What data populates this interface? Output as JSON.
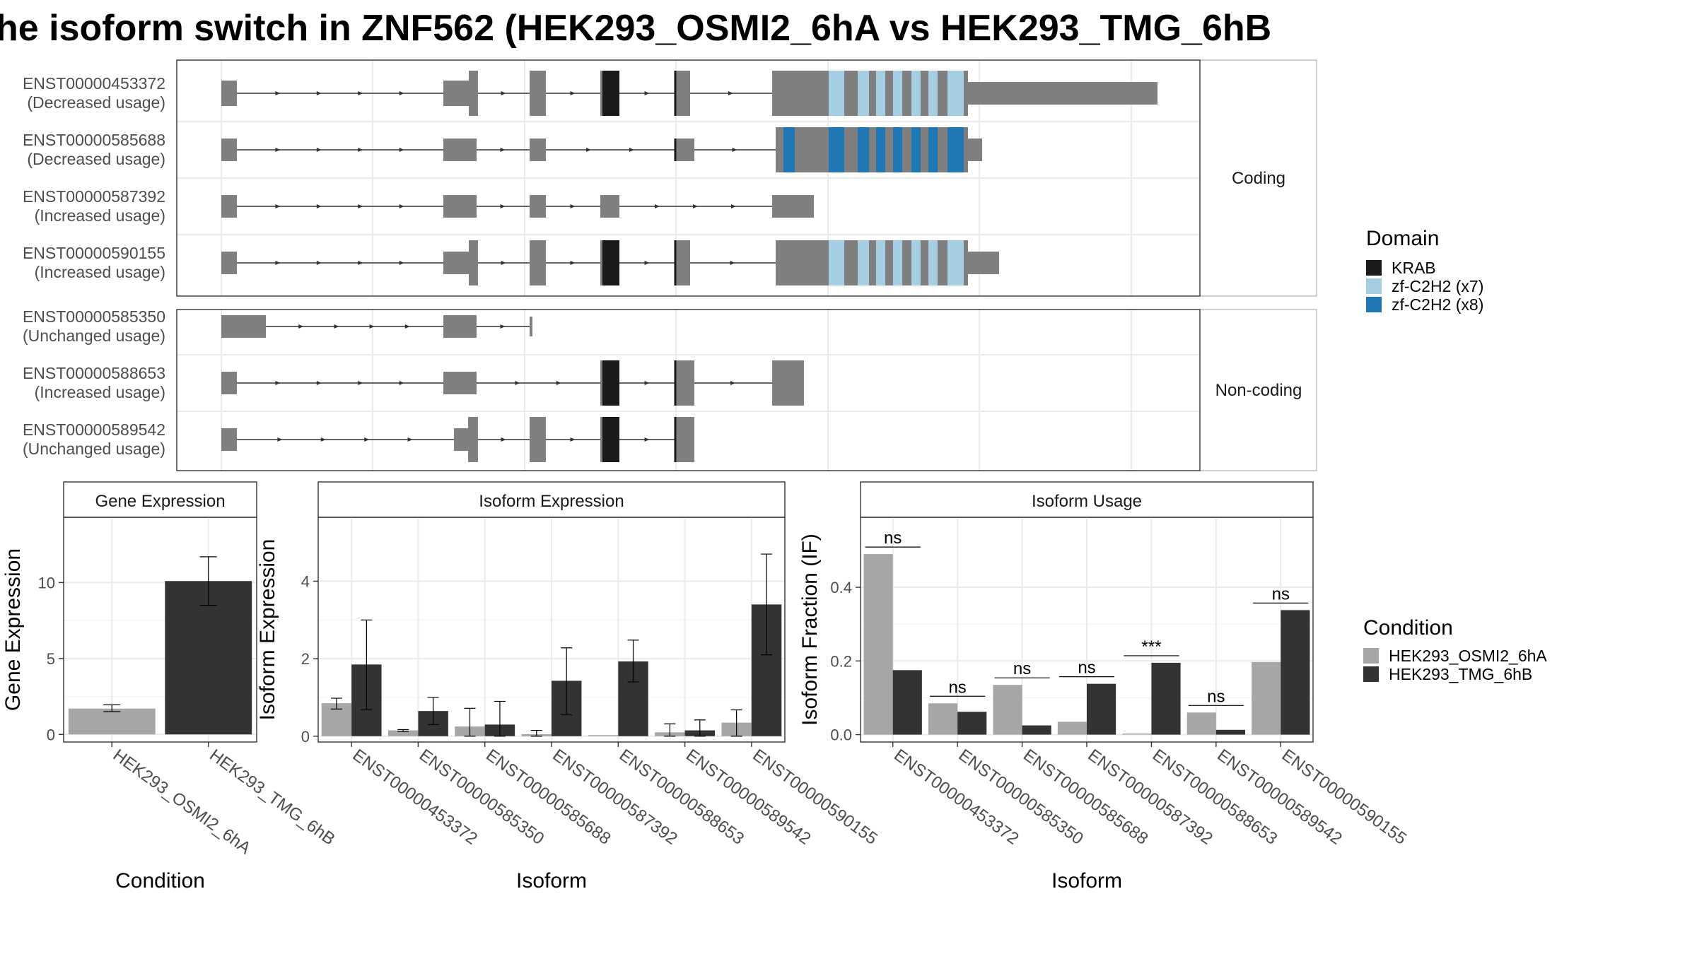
{
  "title": "he isoform switch in ZNF562 (HEK293_OSMI2_6hA vs HEK293_TMG_6hB",
  "colors": {
    "krab": "#1a1a1a",
    "zf7": "#a6cee3",
    "zf8": "#1f78b4",
    "exon": "#7f7f7f",
    "cond1": "#a6a6a6",
    "cond2": "#333333",
    "strip_bg": "#ffffff",
    "grid": "#ebebeb"
  },
  "structure": {
    "groups": [
      {
        "label": "Coding",
        "transcripts": [
          {
            "id": "ENST00000453372",
            "usage": "(Decreased usage)"
          },
          {
            "id": "ENST00000585688",
            "usage": "(Decreased usage)"
          },
          {
            "id": "ENST00000587392",
            "usage": "(Increased usage)"
          },
          {
            "id": "ENST00000590155",
            "usage": "(Increased usage)"
          }
        ]
      },
      {
        "label": "Non-coding",
        "transcripts": [
          {
            "id": "ENST00000585350",
            "usage": "(Unchanged usage)"
          },
          {
            "id": "ENST00000588653",
            "usage": "(Increased usage)"
          },
          {
            "id": "ENST00000589542",
            "usage": "(Unchanged usage)"
          }
        ]
      }
    ],
    "domain_legend": {
      "title": "Domain",
      "items": [
        {
          "name": "KRAB",
          "color": "#1a1a1a"
        },
        {
          "name": "zf-C2H2 (x7)",
          "color": "#a6cee3"
        },
        {
          "name": "zf-C2H2 (x8)",
          "color": "#1f78b4"
        }
      ]
    }
  },
  "chart_data": [
    {
      "type": "bar",
      "title": "Gene Expression",
      "xlabel": "Condition",
      "ylabel": "Gene Expression",
      "categories": [
        "HEK293_OSMI2_6hA",
        "HEK293_TMG_6hB"
      ],
      "values": [
        1.7,
        10.1
      ],
      "errors": [
        [
          1.5,
          1.95
        ],
        [
          8.5,
          11.7
        ]
      ],
      "ylim": [
        -0.5,
        14.3
      ],
      "yticks": [
        0,
        5,
        10
      ]
    },
    {
      "type": "bar",
      "title": "Isoform Expression",
      "xlabel": "Isoform",
      "ylabel": "Isoform Expression",
      "categories": [
        "ENST00000453372",
        "ENST00000585350",
        "ENST00000585688",
        "ENST00000587392",
        "ENST00000588653",
        "ENST00000589542",
        "ENST00000590155"
      ],
      "series": [
        {
          "name": "HEK293_OSMI2_6hA",
          "values": [
            0.85,
            0.15,
            0.25,
            0.05,
            0.0,
            0.1,
            0.35
          ],
          "errors": [
            [
              0.7,
              0.98
            ],
            [
              0.12,
              0.17
            ],
            [
              0.0,
              0.72
            ],
            [
              0.0,
              0.15
            ],
            [
              0.0,
              0.0
            ],
            [
              0.0,
              0.32
            ],
            [
              0.0,
              0.68
            ]
          ]
        },
        {
          "name": "HEK293_TMG_6hB",
          "values": [
            1.85,
            0.65,
            0.3,
            1.43,
            1.93,
            0.15,
            3.4
          ],
          "errors": [
            [
              0.68,
              3.0
            ],
            [
              0.3,
              1.0
            ],
            [
              0.0,
              0.9
            ],
            [
              0.55,
              2.28
            ],
            [
              1.4,
              2.48
            ],
            [
              0.0,
              0.42
            ],
            [
              2.1,
              4.7
            ]
          ]
        }
      ],
      "ylim": [
        -0.15,
        5.65
      ],
      "yticks": [
        0,
        2,
        4
      ]
    },
    {
      "type": "bar",
      "title": "Isoform Usage",
      "xlabel": "Isoform",
      "ylabel": "Isoform Fraction (IF)",
      "categories": [
        "ENST00000453372",
        "ENST00000585350",
        "ENST00000585688",
        "ENST00000587392",
        "ENST00000588653",
        "ENST00000589542",
        "ENST00000590155"
      ],
      "series": [
        {
          "name": "HEK293_OSMI2_6hA",
          "values": [
            0.49,
            0.085,
            0.135,
            0.035,
            0.0,
            0.06,
            0.197
          ]
        },
        {
          "name": "HEK293_TMG_6hB",
          "values": [
            0.175,
            0.062,
            0.025,
            0.138,
            0.195,
            0.013,
            0.338
          ]
        }
      ],
      "significance": [
        "ns",
        "ns",
        "ns",
        "ns",
        "***",
        "ns",
        "ns"
      ],
      "ylim": [
        -0.02,
        0.59
      ],
      "yticks": [
        0.0,
        0.2,
        0.4
      ],
      "ytick_labels": [
        "0.0",
        "0.2",
        "0.4"
      ]
    }
  ],
  "condition_legend": {
    "title": "Condition",
    "items": [
      {
        "name": "HEK293_OSMI2_6hA",
        "color": "#a6a6a6"
      },
      {
        "name": "HEK293_TMG_6hB",
        "color": "#333333"
      }
    ]
  }
}
